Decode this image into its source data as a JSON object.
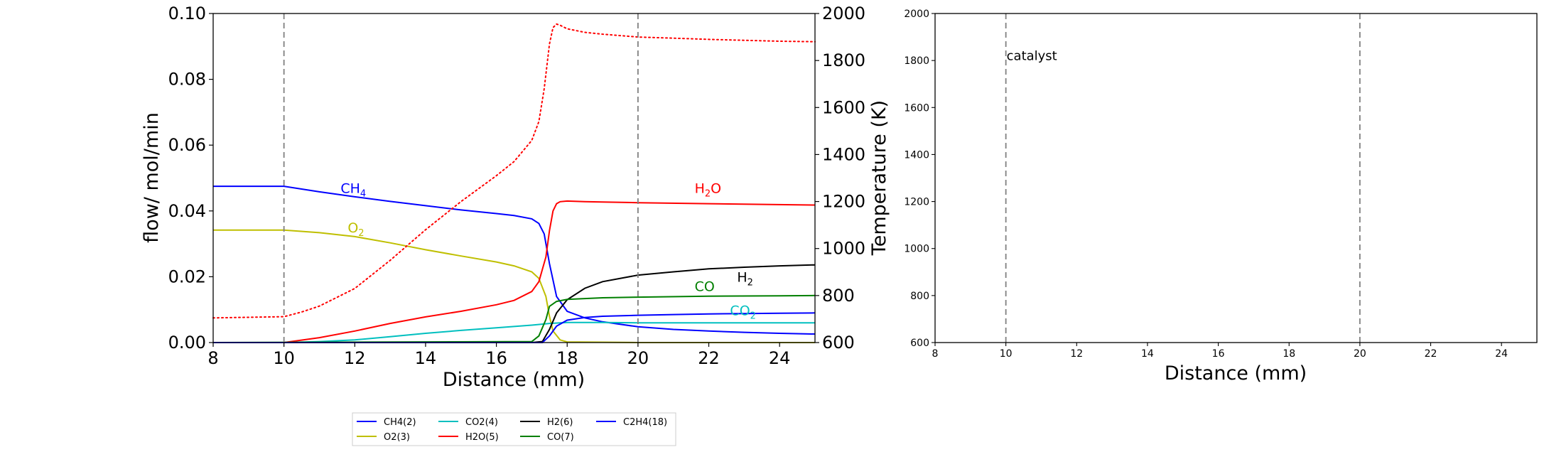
{
  "chart_data": [
    {
      "type": "line",
      "xlabel": "Distance (mm)",
      "ylabel": "flow/ mol/min",
      "y2label": "Temperature (K)",
      "xlim": [
        8,
        25
      ],
      "ylim": [
        0,
        0.1
      ],
      "y2lim": [
        600,
        2000
      ],
      "xticks": [
        "8",
        "10",
        "12",
        "14",
        "16",
        "18",
        "20",
        "22",
        "24"
      ],
      "yticks": [
        "0.00",
        "0.02",
        "0.04",
        "0.06",
        "0.08",
        "0.10"
      ],
      "y2ticks": [
        "600",
        "800",
        "1000",
        "1200",
        "1400",
        "1600",
        "1800",
        "2000"
      ],
      "grid": false,
      "vlines": [
        10,
        20
      ],
      "series": [
        {
          "name": "CH4(2)",
          "color": "#0000ff",
          "style": "solid",
          "x": [
            8,
            10,
            11,
            12,
            13,
            14,
            15,
            16,
            16.5,
            17,
            17.2,
            17.35,
            17.5,
            17.7,
            18,
            18.5,
            19,
            20,
            21,
            22,
            23,
            24,
            25
          ],
          "y": [
            0.0475,
            0.0475,
            0.0458,
            0.0443,
            0.0429,
            0.0416,
            0.0403,
            0.0392,
            0.0386,
            0.0376,
            0.0362,
            0.033,
            0.024,
            0.014,
            0.0095,
            0.0075,
            0.0063,
            0.0048,
            0.004,
            0.0035,
            0.0031,
            0.0028,
            0.0026
          ]
        },
        {
          "name": "O2(3)",
          "color": "#bfbf00",
          "style": "solid",
          "x": [
            8,
            10,
            11,
            12,
            13,
            14,
            15,
            16,
            16.5,
            17,
            17.2,
            17.4,
            17.5,
            17.6,
            17.8,
            18,
            19,
            20,
            25
          ],
          "y": [
            0.0342,
            0.0342,
            0.0334,
            0.0322,
            0.0303,
            0.0282,
            0.0263,
            0.0245,
            0.0233,
            0.0215,
            0.0195,
            0.014,
            0.008,
            0.0035,
            0.0008,
            0.0002,
            0.0001,
            0.0,
            0.0
          ]
        },
        {
          "name": "CO2(4)",
          "color": "#00bfbf",
          "style": "solid",
          "x": [
            8,
            10,
            11,
            12,
            13,
            14,
            15,
            16,
            17,
            17.5,
            18,
            19,
            20,
            25
          ],
          "y": [
            0.0,
            0.0,
            0.0003,
            0.0008,
            0.0018,
            0.0028,
            0.0037,
            0.0045,
            0.0053,
            0.0058,
            0.0061,
            0.0061,
            0.006,
            0.006
          ]
        },
        {
          "name": "H2O(5)",
          "color": "#ff0000",
          "style": "solid",
          "x": [
            8,
            10,
            11,
            12,
            13,
            14,
            15,
            16,
            16.5,
            17,
            17.2,
            17.4,
            17.5,
            17.6,
            17.7,
            17.8,
            18,
            18.5,
            19,
            20,
            22,
            25
          ],
          "y": [
            0.0,
            0.0,
            0.0015,
            0.0035,
            0.0058,
            0.0078,
            0.0095,
            0.0115,
            0.0128,
            0.0155,
            0.0185,
            0.026,
            0.034,
            0.04,
            0.0422,
            0.0428,
            0.043,
            0.0428,
            0.0427,
            0.0425,
            0.0422,
            0.0418
          ]
        },
        {
          "name": "H2(6)",
          "color": "#000000",
          "style": "solid",
          "x": [
            8,
            17,
            17.3,
            17.5,
            17.7,
            18,
            18.5,
            19,
            20,
            21,
            22,
            23,
            24,
            25
          ],
          "y": [
            0.0,
            0.0,
            0.0003,
            0.004,
            0.009,
            0.013,
            0.0165,
            0.0185,
            0.0205,
            0.0215,
            0.0224,
            0.0229,
            0.0233,
            0.0236
          ]
        },
        {
          "name": "CO(7)",
          "color": "#007f00",
          "style": "solid",
          "x": [
            8,
            17,
            17.2,
            17.4,
            17.5,
            17.7,
            18,
            19,
            20,
            22,
            24,
            25
          ],
          "y": [
            0.0,
            0.0003,
            0.002,
            0.007,
            0.011,
            0.0125,
            0.0131,
            0.0136,
            0.0138,
            0.0141,
            0.0142,
            0.0143
          ]
        },
        {
          "name": "C2H4(18)",
          "color": "#0000ff",
          "style": "solid",
          "x": [
            8,
            17.3,
            17.5,
            17.7,
            18,
            18.5,
            19,
            20,
            21,
            22,
            23,
            24,
            25
          ],
          "y": [
            0.0,
            0.0,
            0.002,
            0.005,
            0.0068,
            0.0076,
            0.008,
            0.0083,
            0.0085,
            0.0087,
            0.0088,
            0.0089,
            0.009
          ]
        },
        {
          "name": "",
          "color": "#ff0000",
          "style": "dotted",
          "axis": "y2",
          "x": [
            8,
            10,
            10.5,
            11,
            12,
            13,
            14,
            15,
            16,
            16.5,
            17,
            17.2,
            17.35,
            17.5,
            17.6,
            17.7,
            17.8,
            18,
            18.5,
            19,
            20,
            21,
            22,
            23,
            24,
            25
          ],
          "y": [
            705,
            710,
            730,
            755,
            830,
            950,
            1080,
            1200,
            1310,
            1370,
            1460,
            1540,
            1680,
            1870,
            1940,
            1955,
            1950,
            1935,
            1920,
            1912,
            1900,
            1895,
            1890,
            1886,
            1882,
            1880
          ]
        }
      ],
      "annotations": [
        {
          "text": "CH",
          "sub": "4",
          "x": 11.6,
          "y": 0.0455,
          "color": "#0000ff"
        },
        {
          "text": "O",
          "sub": "2",
          "x": 11.8,
          "y": 0.0335,
          "color": "#bfbf00"
        },
        {
          "text": "H",
          "sub": "2",
          "after": "O",
          "x": 21.6,
          "y": 0.0455,
          "color": "#ff0000"
        },
        {
          "text": "H",
          "sub": "2",
          "x": 22.8,
          "y": 0.0185,
          "color": "#000000"
        },
        {
          "text": "CO",
          "x": 21.6,
          "y": 0.0157,
          "color": "#007f00"
        },
        {
          "text": "CO",
          "sub": "2",
          "x": 22.6,
          "y": 0.0083,
          "color": "#00bfbf"
        }
      ],
      "legend": {
        "placement": "below",
        "ncol": 4,
        "entries": [
          {
            "label": "CH4(2)",
            "color": "#0000ff"
          },
          {
            "label": "CO2(4)",
            "color": "#00bfbf"
          },
          {
            "label": "H2(6)",
            "color": "#000000"
          },
          {
            "label": "C2H4(18)",
            "color": "#0000ff"
          },
          {
            "label": "O2(3)",
            "color": "#bfbf00"
          },
          {
            "label": "H2O(5)",
            "color": "#ff0000"
          },
          {
            "label": "CO(7)",
            "color": "#007f00"
          }
        ]
      }
    },
    {
      "type": "line",
      "xlabel": "Distance (mm)",
      "xlim": [
        8,
        25
      ],
      "ylim": [
        600,
        2000
      ],
      "xticks": [
        "8",
        "10",
        "12",
        "14",
        "16",
        "18",
        "20",
        "22",
        "24"
      ],
      "yticks": [
        "600",
        "800",
        "1000",
        "1200",
        "1400",
        "1600",
        "1800",
        "2000"
      ],
      "grid": false,
      "vlines": [
        10,
        20
      ],
      "annotations": [
        {
          "text": "catalyst",
          "x": 10,
          "y": 1820,
          "color": "#000000"
        }
      ],
      "series": []
    }
  ]
}
